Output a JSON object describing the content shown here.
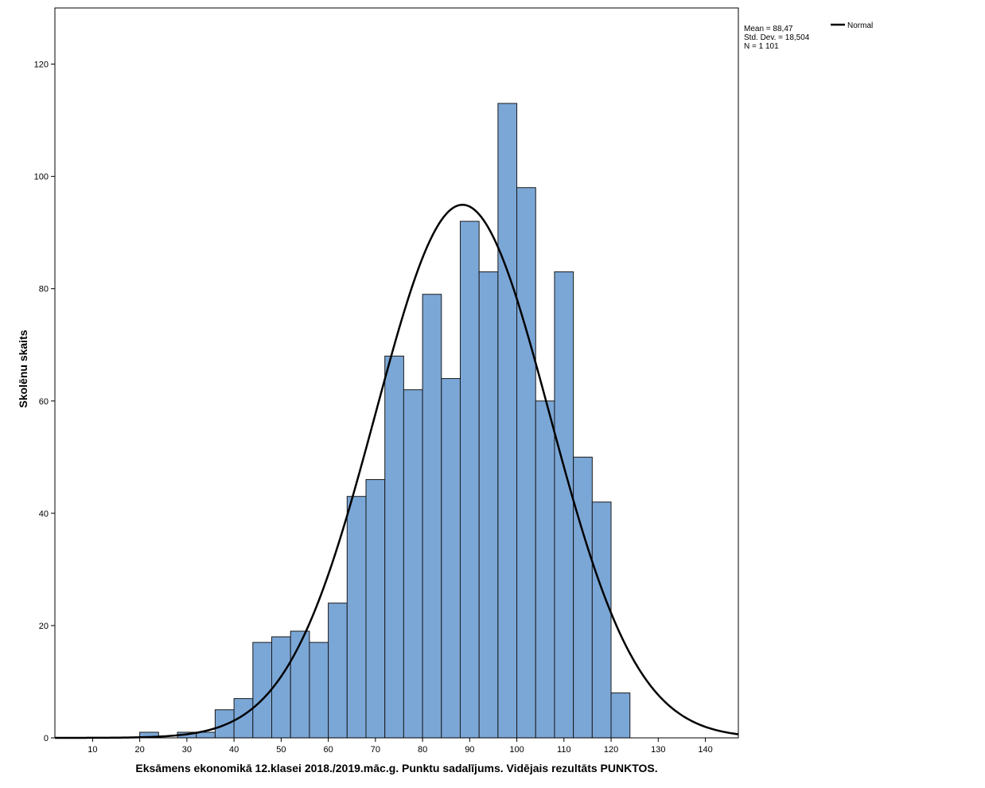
{
  "chart_data": {
    "type": "bar",
    "subtype": "histogram",
    "xlabel": "Eksāmens ekonomikā 12.klasei 2018./2019.māc.g. Punktu sadalījums. Vidējais rezultāts PUNKTOS.",
    "ylabel": "Skolēnu skaits",
    "xlim": [
      2,
      147
    ],
    "ylim": [
      0,
      130
    ],
    "x_ticks": [
      10,
      20,
      30,
      40,
      50,
      60,
      70,
      80,
      90,
      100,
      110,
      120,
      130,
      140
    ],
    "y_ticks": [
      0,
      20,
      40,
      60,
      80,
      100,
      120
    ],
    "bin_width": 4,
    "bins": [
      {
        "start": 20,
        "count": 1
      },
      {
        "start": 24,
        "count": 0
      },
      {
        "start": 28,
        "count": 1
      },
      {
        "start": 32,
        "count": 1
      },
      {
        "start": 36,
        "count": 5
      },
      {
        "start": 40,
        "count": 7
      },
      {
        "start": 44,
        "count": 17
      },
      {
        "start": 48,
        "count": 18
      },
      {
        "start": 52,
        "count": 19
      },
      {
        "start": 56,
        "count": 17
      },
      {
        "start": 60,
        "count": 24
      },
      {
        "start": 64,
        "count": 43
      },
      {
        "start": 68,
        "count": 46
      },
      {
        "start": 72,
        "count": 68
      },
      {
        "start": 76,
        "count": 62
      },
      {
        "start": 80,
        "count": 79
      },
      {
        "start": 84,
        "count": 64
      },
      {
        "start": 88,
        "count": 92
      },
      {
        "start": 92,
        "count": 83
      },
      {
        "start": 96,
        "count": 113
      },
      {
        "start": 100,
        "count": 98
      },
      {
        "start": 104,
        "count": 60
      },
      {
        "start": 108,
        "count": 83
      },
      {
        "start": 112,
        "count": 50
      },
      {
        "start": 116,
        "count": 42
      },
      {
        "start": 120,
        "count": 8
      }
    ],
    "normal_curve": {
      "mean": 88.47,
      "std": 18.504,
      "n": 1101
    },
    "stats_text": [
      "Mean = 88,47",
      "Std. Dev. = 18,504",
      "N = 1 101"
    ],
    "legend": [
      {
        "label": "Normal",
        "style": "line"
      }
    ],
    "legend_position": "top-right",
    "grid": false,
    "colors": {
      "bar_fill": "#7ba7d7",
      "bar_stroke": "#1a1a1a",
      "curve": "#000000",
      "axis": "#000000"
    }
  }
}
